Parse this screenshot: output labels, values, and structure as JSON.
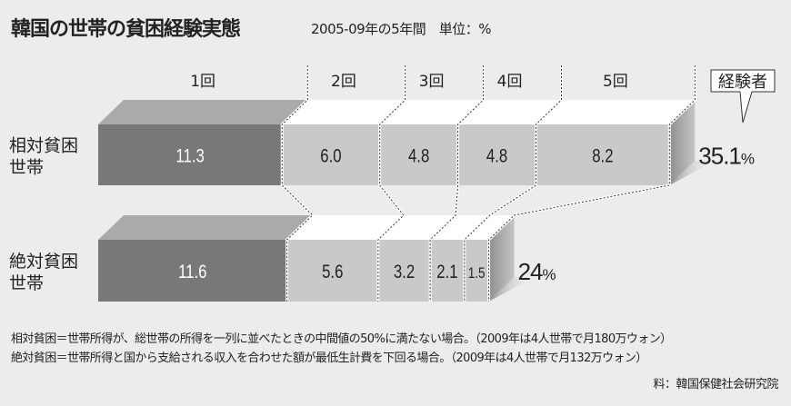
{
  "header": {
    "title": "韓国の世帯の貧困経験実態",
    "subtitle": "2005-09年の5年間　単位：%"
  },
  "chart_data": {
    "type": "bar",
    "stacked": true,
    "orientation": "horizontal",
    "categories": [
      "1回",
      "2回",
      "3回",
      "4回",
      "5回"
    ],
    "rows": [
      {
        "label": "相対貧困\n世帯",
        "label_lines": [
          "相対貧困",
          "世帯"
        ],
        "values": [
          11.3,
          6.0,
          4.8,
          4.8,
          8.2
        ],
        "value_labels": [
          "11.3",
          "6.0",
          "4.8",
          "4.8",
          "8.2"
        ],
        "total": "35.1",
        "total_unit": "%"
      },
      {
        "label": "絶対貧困\n世帯",
        "label_lines": [
          "絶対貧困",
          "世帯"
        ],
        "values": [
          11.6,
          5.6,
          3.2,
          2.1,
          1.5
        ],
        "value_labels": [
          "11.6",
          "5.6",
          "3.2",
          "2.1",
          "1.5"
        ],
        "total": "24",
        "total_unit": "%"
      }
    ],
    "total_callout": "経験者",
    "colors": {
      "first_front": "#77787a",
      "first_top": "#a9aaac",
      "rest_front": "#c8c9cb",
      "rest_top": "#ffffff",
      "side": "#9a9b9d",
      "background": "#ececec"
    },
    "grid": false
  },
  "notes": [
    "相対貧困＝世帯所得が、総世帯の所得を一列に並べたときの中間値の50%に満たない場合。（2009年は4人世帯で月180万ウォン）",
    "絶対貧困＝世帯所得と国から支給される収入を合わせた額が最低生計費を下回る場合。（2009年は4人世帯で月132万ウォン）"
  ],
  "source": "料：韓国保健社会研究院"
}
